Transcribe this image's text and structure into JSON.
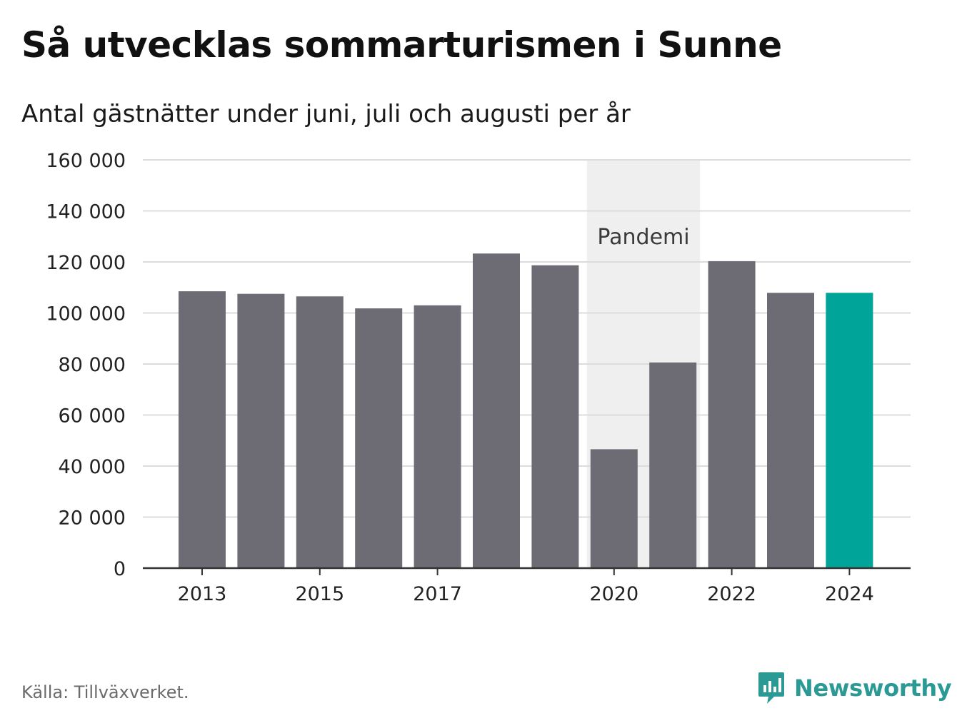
{
  "title": "Så utvecklas sommarturismen i Sunne",
  "subtitle": "Antal gästnätter under juni, juli och augusti per år",
  "source": "Källa: Tillväxverket.",
  "brand": "Newsworthy",
  "colors": {
    "bar": "#6d6c74",
    "highlight": "#00a499",
    "shade": "#efefef",
    "grid": "#dcdcdc",
    "axis": "#333333",
    "brand": "#2b9a95"
  },
  "chart_data": {
    "type": "bar",
    "categories": [
      "2013",
      "2014",
      "2015",
      "2016",
      "2017",
      "2018",
      "2019",
      "2020",
      "2021",
      "2022",
      "2023",
      "2024"
    ],
    "values": [
      108500,
      107500,
      106500,
      101800,
      103000,
      123300,
      118700,
      46600,
      80600,
      120300,
      107900,
      107900
    ],
    "highlight_index": 11,
    "x_tick_labels": [
      "2013",
      "2015",
      "2017",
      "2020",
      "2022",
      "2024"
    ],
    "y_ticks": [
      0,
      20000,
      40000,
      60000,
      80000,
      100000,
      120000,
      140000,
      160000
    ],
    "y_tick_labels": [
      "0",
      "20 000",
      "40 000",
      "60 000",
      "80 000",
      "100 000",
      "120 000",
      "140 000",
      "160 000"
    ],
    "ylim": [
      0,
      160000
    ],
    "grid": true,
    "annotation": {
      "label": "Pandemi",
      "from": "2020",
      "to": "2021"
    }
  }
}
